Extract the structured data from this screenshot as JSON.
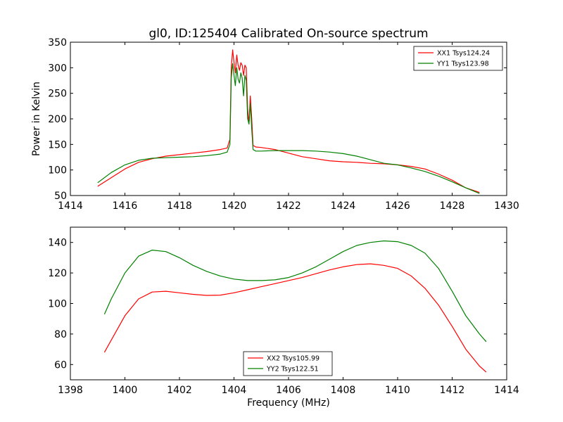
{
  "figure": {
    "title": "gl0, ID:125404 Calibrated On-source spectrum",
    "xlabel": "Frequency (MHz)"
  },
  "chart_data": [
    {
      "type": "line",
      "title": "gl0, ID:125404 Calibrated On-source spectrum",
      "xlabel": "",
      "ylabel": "Power in Kelvin",
      "xlim": [
        1414,
        1430
      ],
      "ylim": [
        50,
        350
      ],
      "xticks": [
        "1414",
        "1416",
        "1418",
        "1420",
        "1422",
        "1424",
        "1426",
        "1428",
        "1430"
      ],
      "yticks": [
        "50",
        "100",
        "150",
        "200",
        "250",
        "300",
        "350"
      ],
      "grid": false,
      "legend": "top-right",
      "series": [
        {
          "name": "XX1 Tsys124.24",
          "color": "#ff0000",
          "x": [
            1415.0,
            1415.5,
            1416.0,
            1416.5,
            1417.0,
            1417.5,
            1418.0,
            1418.5,
            1419.0,
            1419.5,
            1419.75,
            1419.85,
            1419.9,
            1419.95,
            1420.0,
            1420.05,
            1420.1,
            1420.15,
            1420.2,
            1420.25,
            1420.3,
            1420.35,
            1420.4,
            1420.45,
            1420.5,
            1420.55,
            1420.6,
            1420.65,
            1420.7,
            1420.8,
            1421.0,
            1421.5,
            1422.0,
            1422.5,
            1423.0,
            1423.5,
            1424.0,
            1424.5,
            1425.0,
            1425.5,
            1426.0,
            1426.5,
            1427.0,
            1427.5,
            1428.0,
            1428.5,
            1429.0
          ],
          "y": [
            68,
            85,
            102,
            115,
            122,
            127,
            130,
            133,
            136,
            140,
            143,
            160,
            300,
            335,
            310,
            290,
            325,
            305,
            295,
            310,
            305,
            285,
            305,
            300,
            220,
            190,
            245,
            200,
            148,
            145,
            144,
            140,
            133,
            126,
            122,
            118,
            116,
            115,
            113,
            112,
            110,
            107,
            102,
            92,
            80,
            65,
            56
          ]
        },
        {
          "name": "YY1 Tsys123.98",
          "color": "#008000",
          "x": [
            1415.0,
            1415.5,
            1416.0,
            1416.5,
            1417.0,
            1417.5,
            1418.0,
            1418.5,
            1419.0,
            1419.5,
            1419.75,
            1419.85,
            1419.9,
            1419.95,
            1420.0,
            1420.05,
            1420.1,
            1420.15,
            1420.2,
            1420.25,
            1420.3,
            1420.35,
            1420.4,
            1420.45,
            1420.5,
            1420.55,
            1420.6,
            1420.65,
            1420.7,
            1420.8,
            1421.0,
            1421.5,
            1422.0,
            1422.5,
            1423.0,
            1423.5,
            1424.0,
            1424.5,
            1425.0,
            1425.5,
            1426.0,
            1426.5,
            1427.0,
            1427.5,
            1428.0,
            1428.5,
            1429.0
          ],
          "y": [
            75,
            95,
            110,
            119,
            123,
            124,
            125,
            126,
            128,
            131,
            135,
            150,
            280,
            308,
            285,
            265,
            300,
            278,
            270,
            290,
            280,
            245,
            285,
            275,
            200,
            190,
            230,
            180,
            140,
            137,
            137,
            138,
            138,
            138,
            137,
            135,
            132,
            127,
            120,
            113,
            110,
            104,
            97,
            88,
            77,
            65,
            54
          ]
        }
      ]
    },
    {
      "type": "line",
      "title": "",
      "xlabel": "Frequency (MHz)",
      "ylabel": "",
      "xlim": [
        1398,
        1414
      ],
      "ylim": [
        50,
        150
      ],
      "xticks": [
        "1398",
        "1400",
        "1402",
        "1404",
        "1406",
        "1408",
        "1410",
        "1412",
        "1414"
      ],
      "yticks": [
        "60",
        "80",
        "100",
        "120",
        "140"
      ],
      "grid": false,
      "legend": "bottom-center",
      "series": [
        {
          "name": "XX2 Tsys105.99",
          "color": "#ff0000",
          "x": [
            1399.25,
            1399.5,
            1400.0,
            1400.5,
            1401.0,
            1401.5,
            1402.0,
            1402.5,
            1403.0,
            1403.5,
            1404.0,
            1404.5,
            1405.0,
            1405.5,
            1406.0,
            1406.5,
            1407.0,
            1407.5,
            1408.0,
            1408.5,
            1409.0,
            1409.5,
            1410.0,
            1410.5,
            1411.0,
            1411.5,
            1412.0,
            1412.5,
            1413.0,
            1413.25
          ],
          "y": [
            68,
            76,
            92,
            103,
            107.5,
            108,
            107,
            106,
            105.3,
            105.5,
            107,
            109,
            111,
            113,
            115,
            117,
            119.5,
            122,
            124,
            125.5,
            126,
            125,
            123,
            118,
            110,
            99,
            85,
            70,
            59,
            55
          ]
        },
        {
          "name": "YY2 Tsys122.51",
          "color": "#008000",
          "x": [
            1399.25,
            1399.5,
            1400.0,
            1400.5,
            1401.0,
            1401.5,
            1402.0,
            1402.5,
            1403.0,
            1403.5,
            1404.0,
            1404.5,
            1405.0,
            1405.5,
            1406.0,
            1406.5,
            1407.0,
            1407.5,
            1408.0,
            1408.5,
            1409.0,
            1409.5,
            1410.0,
            1410.5,
            1411.0,
            1411.5,
            1412.0,
            1412.5,
            1413.0,
            1413.25
          ],
          "y": [
            93,
            103,
            120,
            131,
            135,
            134,
            130,
            125,
            121,
            118,
            116,
            115,
            115,
            115.5,
            117,
            120,
            124,
            129,
            134,
            138,
            140,
            141,
            140.5,
            138,
            133,
            123,
            108,
            92,
            80,
            75
          ]
        }
      ]
    }
  ]
}
